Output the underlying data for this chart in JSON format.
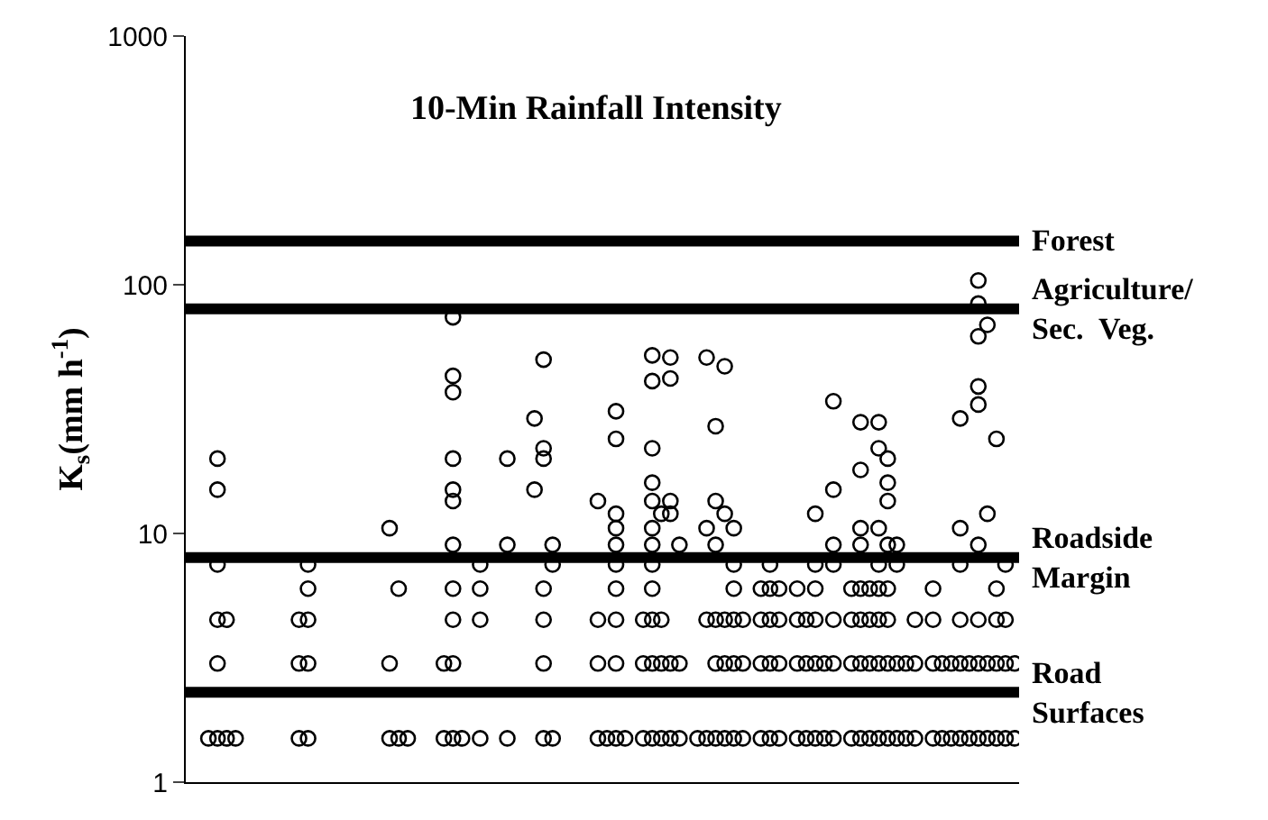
{
  "chart_data": {
    "type": "scatter",
    "title": "10-Min Rainfall Intensity",
    "ylabel": "K$_{s}$(mm h$^{-1}$)",
    "categories": [
      null,
      null,
      null,
      null,
      null,
      null,
      null,
      null,
      null,
      null,
      null,
      null,
      null,
      null,
      null,
      null,
      null,
      null,
      null,
      null,
      null,
      null,
      null,
      null,
      null,
      null,
      null,
      null,
      null,
      null,
      null,
      null,
      null,
      null,
      null,
      null,
      null,
      null,
      null,
      null,
      null,
      null,
      null,
      null,
      null,
      null,
      null,
      null,
      null,
      null,
      null,
      null,
      null,
      null,
      null,
      null,
      null,
      null,
      null,
      null,
      null,
      null,
      null,
      null,
      null,
      null,
      null,
      null,
      null,
      null,
      null,
      null,
      null,
      null,
      null,
      null,
      null,
      null,
      null,
      null,
      null,
      null,
      null,
      null,
      null,
      null,
      null,
      null,
      null,
      null,
      null,
      null
    ],
    "log": "y",
    "ylim": [
      1,
      1000
    ],
    "yticks": [
      1,
      10,
      100,
      1000
    ],
    "marker": "circle",
    "tick_labels": "y",
    "ref_lines": [
      {
        "axis": "y",
        "value": 150,
        "label": "Forest",
        "color": "#000000"
      },
      {
        "axis": "y",
        "value": 80,
        "label": "Agriculture/\nSec.  Veg.",
        "color": "#000000"
      },
      {
        "axis": "y",
        "value": 8,
        "label": "Roadside\nMargin",
        "color": "#000000"
      },
      {
        "axis": "y",
        "value": 2.3,
        "label": "Road\nSurfaces",
        "color": "#000000"
      }
    ],
    "series": [
      {
        "color": "#000000",
        "values": [
          null,
          null,
          1.5,
          1.5,
          1.5,
          1.5,
          null,
          null,
          null,
          null,
          null,
          null,
          1.5,
          1.5,
          null,
          null,
          null,
          null,
          null,
          null,
          null,
          null,
          1.5,
          1.5,
          1.5,
          null,
          null,
          null,
          1.5,
          1.5,
          1.5,
          null,
          1.5,
          null,
          null,
          1.5,
          null,
          null,
          15,
          1.5,
          1.5,
          null,
          null,
          null,
          null,
          1.5,
          1.5,
          1.5,
          1.5,
          null,
          1.5,
          1.5,
          1.5,
          1.5,
          1.5,
          null,
          1.5,
          1.5,
          1.5,
          1.5,
          1.5,
          1.5,
          null,
          1.5,
          1.5,
          1.5,
          null,
          1.5,
          1.5,
          1.5,
          1.5,
          1.5,
          null,
          1.5,
          1.5,
          1.5,
          1.5,
          1.5,
          1.5,
          1.5,
          1.5,
          null,
          1.5,
          1.5,
          1.5,
          1.5,
          1.5,
          1.5,
          1.5,
          1.5,
          1.5,
          1.5
        ]
      },
      {
        "color": "#000000",
        "values": [
          null,
          null,
          null,
          3,
          4.5,
          null,
          null,
          null,
          null,
          null,
          null,
          null,
          3,
          3,
          null,
          null,
          null,
          null,
          null,
          null,
          null,
          null,
          3,
          6,
          null,
          null,
          null,
          null,
          3,
          3,
          null,
          null,
          4.5,
          null,
          null,
          9,
          null,
          null,
          29,
          3,
          7.5,
          null,
          null,
          null,
          null,
          3,
          null,
          3,
          null,
          null,
          3,
          3,
          3,
          3,
          3,
          null,
          null,
          4.5,
          3,
          3,
          3,
          3,
          null,
          3,
          3,
          3,
          null,
          3,
          3,
          3,
          3,
          3,
          null,
          3,
          3,
          3,
          3,
          3,
          3,
          3,
          3,
          null,
          3,
          3,
          3,
          3,
          3,
          3,
          3,
          3,
          3,
          3
        ]
      },
      {
        "color": "#000000",
        "values": [
          null,
          null,
          null,
          4.5,
          null,
          null,
          null,
          null,
          null,
          null,
          null,
          null,
          4.5,
          4.5,
          null,
          null,
          null,
          null,
          null,
          null,
          null,
          null,
          10.5,
          null,
          null,
          null,
          null,
          null,
          null,
          4.5,
          null,
          null,
          6,
          null,
          null,
          20,
          null,
          null,
          null,
          4.5,
          9,
          null,
          null,
          null,
          null,
          4.5,
          null,
          4.5,
          null,
          null,
          4.5,
          4.5,
          4.5,
          12,
          9,
          null,
          null,
          10.5,
          4.5,
          4.5,
          4.5,
          4.5,
          null,
          4.5,
          4.5,
          4.5,
          null,
          4.5,
          4.5,
          4.5,
          null,
          4.5,
          null,
          4.5,
          4.5,
          4.5,
          4.5,
          4.5,
          7.5,
          null,
          4.5,
          null,
          4.5,
          null,
          null,
          4.5,
          null,
          4.5,
          12,
          4.5,
          4.5,
          null
        ]
      },
      {
        "color": "#000000",
        "values": [
          null,
          null,
          null,
          7.5,
          null,
          null,
          null,
          null,
          null,
          null,
          null,
          null,
          null,
          6,
          null,
          null,
          null,
          null,
          null,
          null,
          null,
          null,
          null,
          null,
          null,
          null,
          null,
          null,
          null,
          6,
          null,
          null,
          7.5,
          null,
          null,
          null,
          null,
          null,
          null,
          6,
          null,
          null,
          null,
          null,
          null,
          13.5,
          null,
          6,
          null,
          null,
          null,
          6,
          12,
          13.5,
          null,
          null,
          null,
          51,
          9,
          12,
          6,
          null,
          null,
          6,
          6,
          6,
          null,
          6,
          null,
          6,
          null,
          7.5,
          null,
          6,
          6,
          6,
          6,
          6,
          9,
          null,
          null,
          null,
          6,
          null,
          null,
          7.5,
          null,
          9,
          69,
          6,
          7.5,
          null
        ]
      },
      {
        "color": "#000000",
        "values": [
          null,
          null,
          null,
          15,
          null,
          null,
          null,
          null,
          null,
          null,
          null,
          null,
          null,
          7.5,
          null,
          null,
          null,
          null,
          null,
          null,
          null,
          null,
          null,
          null,
          null,
          null,
          null,
          null,
          null,
          9,
          null,
          null,
          null,
          null,
          null,
          null,
          null,
          null,
          null,
          20,
          null,
          null,
          null,
          null,
          null,
          null,
          null,
          7.5,
          null,
          null,
          null,
          7.5,
          null,
          42,
          null,
          null,
          null,
          null,
          13.5,
          47,
          7.5,
          null,
          null,
          null,
          7.5,
          null,
          null,
          null,
          null,
          7.5,
          null,
          9,
          null,
          null,
          9,
          null,
          7.5,
          9,
          null,
          null,
          null,
          null,
          null,
          null,
          null,
          10.5,
          null,
          33,
          null,
          24,
          null,
          null
        ]
      },
      {
        "color": "#000000",
        "values": [
          null,
          null,
          null,
          20,
          null,
          null,
          null,
          null,
          null,
          null,
          null,
          null,
          null,
          null,
          null,
          null,
          null,
          null,
          null,
          null,
          null,
          null,
          null,
          null,
          null,
          null,
          null,
          null,
          null,
          13.5,
          null,
          null,
          null,
          null,
          null,
          null,
          null,
          null,
          null,
          22,
          null,
          null,
          null,
          null,
          null,
          null,
          null,
          9,
          null,
          null,
          null,
          9,
          null,
          51,
          null,
          null,
          null,
          null,
          27,
          null,
          10.5,
          null,
          null,
          null,
          null,
          null,
          null,
          null,
          null,
          12,
          null,
          15,
          null,
          null,
          10.5,
          null,
          10.5,
          13.5,
          null,
          null,
          null,
          null,
          null,
          null,
          null,
          29,
          null,
          39,
          null,
          null,
          null,
          null
        ]
      },
      {
        "color": "#000000",
        "values": [
          null,
          null,
          null,
          null,
          null,
          null,
          null,
          null,
          null,
          null,
          null,
          null,
          null,
          null,
          null,
          null,
          null,
          null,
          null,
          null,
          null,
          null,
          null,
          null,
          null,
          null,
          null,
          null,
          null,
          15,
          null,
          null,
          null,
          null,
          null,
          null,
          null,
          null,
          null,
          50,
          null,
          null,
          null,
          null,
          null,
          null,
          null,
          10.5,
          null,
          null,
          null,
          10.5,
          null,
          null,
          null,
          null,
          null,
          null,
          null,
          null,
          null,
          null,
          null,
          null,
          null,
          null,
          null,
          null,
          null,
          null,
          null,
          34,
          null,
          null,
          18,
          null,
          22,
          16,
          null,
          null,
          null,
          null,
          null,
          null,
          null,
          null,
          null,
          62,
          null,
          null,
          null,
          null
        ]
      },
      {
        "color": "#000000",
        "values": [
          null,
          null,
          null,
          null,
          null,
          null,
          null,
          null,
          null,
          null,
          null,
          null,
          null,
          null,
          null,
          null,
          null,
          null,
          null,
          null,
          null,
          null,
          null,
          null,
          null,
          null,
          null,
          null,
          null,
          20,
          null,
          null,
          null,
          null,
          null,
          null,
          null,
          null,
          null,
          null,
          null,
          null,
          null,
          null,
          null,
          null,
          null,
          12,
          null,
          null,
          null,
          13.5,
          null,
          null,
          null,
          null,
          null,
          null,
          null,
          null,
          null,
          null,
          null,
          null,
          null,
          null,
          null,
          null,
          null,
          null,
          null,
          null,
          null,
          null,
          28,
          null,
          28,
          20,
          null,
          null,
          null,
          null,
          null,
          null,
          null,
          null,
          null,
          84,
          null,
          null,
          null,
          null
        ]
      },
      {
        "color": "#000000",
        "values": [
          null,
          null,
          null,
          null,
          null,
          null,
          null,
          null,
          null,
          null,
          null,
          null,
          null,
          null,
          null,
          null,
          null,
          null,
          null,
          null,
          null,
          null,
          null,
          null,
          null,
          null,
          null,
          null,
          null,
          37,
          null,
          null,
          null,
          null,
          null,
          null,
          null,
          null,
          null,
          null,
          null,
          null,
          null,
          null,
          null,
          null,
          null,
          24,
          null,
          null,
          null,
          16,
          null,
          null,
          null,
          null,
          null,
          null,
          null,
          null,
          null,
          null,
          null,
          null,
          null,
          null,
          null,
          null,
          null,
          null,
          null,
          null,
          null,
          null,
          null,
          null,
          null,
          null,
          null,
          null,
          null,
          null,
          null,
          null,
          null,
          null,
          null,
          104,
          null,
          null,
          null,
          null
        ]
      },
      {
        "color": "#000000",
        "values": [
          null,
          null,
          null,
          null,
          null,
          null,
          null,
          null,
          null,
          null,
          null,
          null,
          null,
          null,
          null,
          null,
          null,
          null,
          null,
          null,
          null,
          null,
          null,
          null,
          null,
          null,
          null,
          null,
          null,
          43,
          null,
          null,
          null,
          null,
          null,
          null,
          null,
          null,
          null,
          null,
          null,
          null,
          null,
          null,
          null,
          null,
          null,
          31,
          null,
          null,
          null,
          22,
          null,
          null,
          null,
          null,
          null,
          null,
          null,
          null,
          null,
          null,
          null,
          null,
          null,
          null,
          null,
          null,
          null,
          null,
          null,
          null,
          null,
          null,
          null,
          null,
          null,
          null,
          null,
          null,
          null,
          null,
          null,
          null,
          null,
          null,
          null,
          null,
          null,
          null,
          null,
          null
        ]
      },
      {
        "color": "#000000",
        "values": [
          null,
          null,
          null,
          null,
          null,
          null,
          null,
          null,
          null,
          null,
          null,
          null,
          null,
          null,
          null,
          null,
          null,
          null,
          null,
          null,
          null,
          null,
          null,
          null,
          null,
          null,
          null,
          null,
          null,
          74,
          null,
          null,
          null,
          null,
          null,
          null,
          null,
          null,
          null,
          null,
          null,
          null,
          null,
          null,
          null,
          null,
          null,
          null,
          null,
          null,
          null,
          41,
          null,
          null,
          null,
          null,
          null,
          null,
          null,
          null,
          null,
          null,
          null,
          null,
          null,
          null,
          null,
          null,
          null,
          null,
          null,
          null,
          null,
          null,
          null,
          null,
          null,
          null,
          null,
          null,
          null,
          null,
          null,
          null,
          null,
          null,
          null,
          null,
          null,
          null,
          null,
          null
        ]
      },
      {
        "color": "#000000",
        "values": [
          null,
          null,
          null,
          null,
          null,
          null,
          null,
          null,
          null,
          null,
          null,
          null,
          null,
          null,
          null,
          null,
          null,
          null,
          null,
          null,
          null,
          null,
          null,
          null,
          null,
          null,
          null,
          null,
          null,
          null,
          null,
          null,
          null,
          null,
          null,
          null,
          null,
          null,
          null,
          null,
          null,
          null,
          null,
          null,
          null,
          null,
          null,
          null,
          null,
          null,
          null,
          52,
          null,
          null,
          null,
          null,
          null,
          null,
          null,
          null,
          null,
          null,
          null,
          null,
          null,
          null,
          null,
          null,
          null,
          null,
          null,
          null,
          null,
          null,
          null,
          null,
          null,
          null,
          null,
          null,
          null,
          null,
          null,
          null,
          null,
          null,
          null,
          null,
          null,
          null,
          null,
          null
        ]
      }
    ]
  }
}
